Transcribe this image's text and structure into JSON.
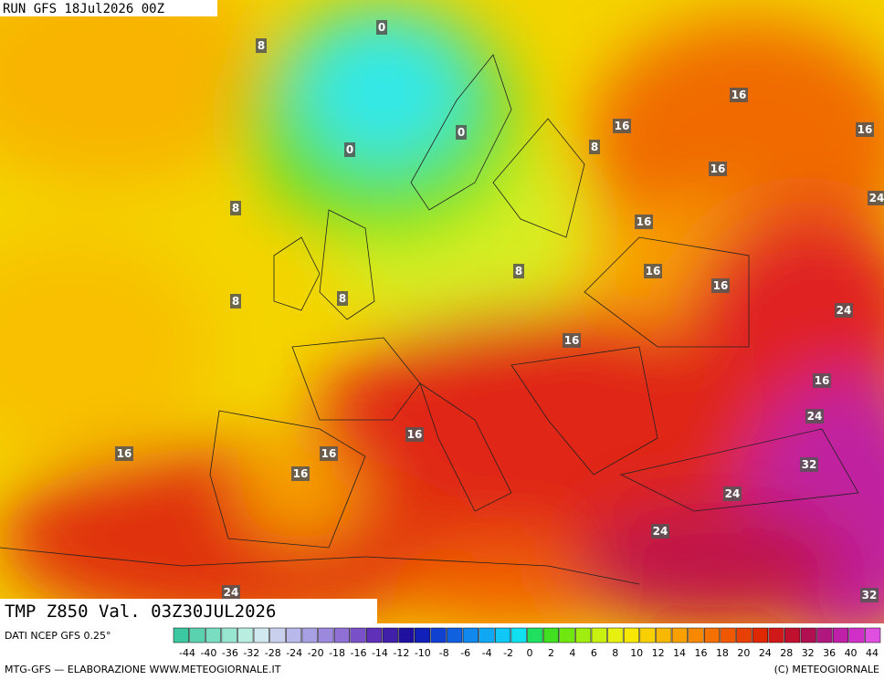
{
  "header": {
    "run": "RUN GFS 18Jul2026 00Z",
    "title": "TMP Z850 Val. 03Z30JUL2026",
    "source": "DATI NCEP GFS 0.25°",
    "credit": "MTG-GFS — ELABORAZIONE WWW.METEOGIORNALE.IT",
    "copyright": "(C) METEOGIORNALE"
  },
  "scale": {
    "labels": [
      -44,
      -40,
      -36,
      -32,
      -28,
      -24,
      -20,
      -18,
      -16,
      -14,
      -12,
      -10,
      -8,
      -6,
      -4,
      -2,
      0,
      2,
      4,
      6,
      8,
      10,
      12,
      14,
      16,
      18,
      20,
      24,
      28,
      32,
      36,
      40,
      44
    ],
    "colors": [
      "#3cc8a0",
      "#5ad2b0",
      "#7adcc0",
      "#98e6d0",
      "#b8eee0",
      "#d0e8f0",
      "#c8d0ee",
      "#b8b8ea",
      "#a8a0e4",
      "#9c88dc",
      "#9070d4",
      "#7a50c8",
      "#6030b8",
      "#4020a8",
      "#2010a0",
      "#1020b8",
      "#1040d0",
      "#1060e0",
      "#1088ee",
      "#10a8f4",
      "#10c8f8",
      "#10e0f0",
      "#20e060",
      "#40e020",
      "#70e810",
      "#a0ee10",
      "#c8f010",
      "#e8f010",
      "#f8e800",
      "#f8d000",
      "#f8b800",
      "#f8a000",
      "#f88800",
      "#f47000",
      "#f05800",
      "#e84000",
      "#e02800",
      "#d01818",
      "#c01030",
      "#b01050",
      "#b01880",
      "#c020a8",
      "#d030c8",
      "#e050e0"
    ]
  },
  "contours": [
    0,
    8,
    16,
    16,
    16,
    0,
    0,
    8,
    16,
    24,
    8,
    16,
    16,
    8,
    16,
    8,
    8,
    24,
    16,
    16,
    16,
    24,
    16,
    16,
    32,
    16,
    24,
    24,
    24,
    32
  ]
}
